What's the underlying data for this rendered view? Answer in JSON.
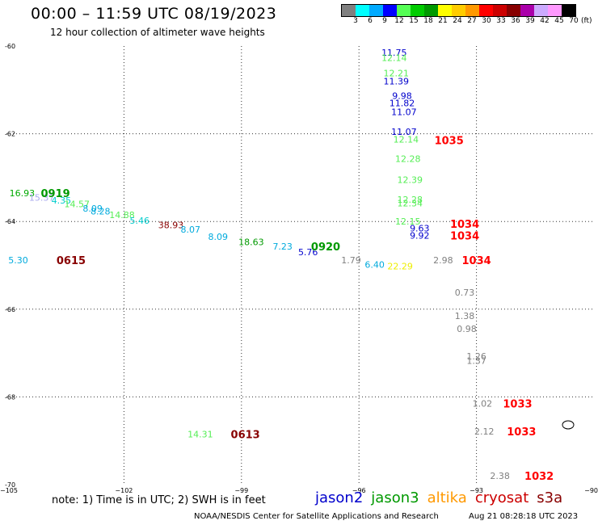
{
  "header": {
    "title": "00:00 – 11:59 UTC 08/19/2023",
    "subtitle": "12 hour collection of altimeter wave heights"
  },
  "legend": {
    "colors": [
      "#808080",
      "#00ffff",
      "#00aaff",
      "#0000ff",
      "#55ff55",
      "#00cc00",
      "#009900",
      "#ffff00",
      "#ffcc00",
      "#ff9900",
      "#ff0000",
      "#cc0000",
      "#880000",
      "#aa00aa",
      "#ccaaff",
      "#ff99ff",
      "#000000"
    ],
    "ticks": [
      "3",
      "6",
      "9",
      "12",
      "15",
      "18",
      "21",
      "24",
      "27",
      "30",
      "33",
      "36",
      "39",
      "42",
      "45",
      "70"
    ],
    "unit": "(ft)"
  },
  "footer": {
    "note": "note:  1) Time is in UTC;  2) SWH is in feet",
    "satellites": [
      {
        "name": "jason2",
        "color": "#0000cc"
      },
      {
        "name": "jason3",
        "color": "#009900"
      },
      {
        "name": "altika",
        "color": "#ff9900"
      },
      {
        "name": "cryosat",
        "color": "#cc0000"
      },
      {
        "name": "s3a",
        "color": "#880000"
      }
    ],
    "credit": "NOAA/NESDIS Center for Satellite Applications and Research",
    "timestamp": "Aug 21 08:28:18 UTC 2023"
  },
  "chart_data": {
    "type": "scatter",
    "xlim": [
      -105,
      -90
    ],
    "ylim": [
      -70,
      -60
    ],
    "x_ticks": [
      -105,
      -102,
      -99,
      -96,
      -93,
      -90
    ],
    "x_tick_labels": [
      "−105",
      "−102",
      "−99",
      "−96",
      "−93",
      "−90"
    ],
    "y_ticks": [
      -60,
      -62,
      -64,
      -66,
      -68,
      -70
    ],
    "y_tick_labels": [
      "-60",
      "-62",
      "-64",
      "-66",
      "-68",
      "-70"
    ],
    "grid": true,
    "wave_heights": [
      {
        "x": -104.6,
        "y": -63.35,
        "value": "16.93",
        "color": "#00aa00"
      },
      {
        "x": -104.1,
        "y": -63.45,
        "value": "15.37",
        "color": "#aaaaee"
      },
      {
        "x": -103.6,
        "y": -63.52,
        "value": "4.35",
        "color": "#00cccc"
      },
      {
        "x": -103.2,
        "y": -63.6,
        "value": "14.57",
        "color": "#55ee55"
      },
      {
        "x": -102.8,
        "y": -63.7,
        "value": "8.09",
        "color": "#00aadd"
      },
      {
        "x": -102.6,
        "y": -63.77,
        "value": "8.28",
        "color": "#00aadd"
      },
      {
        "x": -102.05,
        "y": -63.85,
        "value": "14.88",
        "color": "#55ee55"
      },
      {
        "x": -101.6,
        "y": -63.98,
        "value": "5.46",
        "color": "#00cccc"
      },
      {
        "x": -100.8,
        "y": -64.08,
        "value": "38.93",
        "color": "#880000"
      },
      {
        "x": -100.3,
        "y": -64.18,
        "value": "8.07",
        "color": "#00aadd"
      },
      {
        "x": -99.6,
        "y": -64.35,
        "value": "8.09",
        "color": "#00aadd"
      },
      {
        "x": -98.75,
        "y": -64.47,
        "value": "18.63",
        "color": "#009900"
      },
      {
        "x": -97.95,
        "y": -64.57,
        "value": "7.23",
        "color": "#00aadd"
      },
      {
        "x": -97.3,
        "y": -64.7,
        "value": "5.76",
        "color": "#0000cc"
      },
      {
        "x": -104.7,
        "y": -64.88,
        "value": "5.30",
        "color": "#00aadd"
      },
      {
        "x": -96.2,
        "y": -64.88,
        "value": "1.79",
        "color": "#808080"
      },
      {
        "x": -95.6,
        "y": -64.98,
        "value": "6.40",
        "color": "#00aadd"
      },
      {
        "x": -94.95,
        "y": -65.02,
        "value": "22.29",
        "color": "#eeee00"
      },
      {
        "x": -93.85,
        "y": -64.88,
        "value": "2.98",
        "color": "#808080"
      },
      {
        "x": -95.1,
        "y": -60.15,
        "value": "11.75",
        "color": "#0000cc"
      },
      {
        "x": -95.1,
        "y": -60.27,
        "value": "12.14",
        "color": "#55ee55"
      },
      {
        "x": -95.05,
        "y": -60.62,
        "value": "12.21",
        "color": "#55ee55"
      },
      {
        "x": -95.05,
        "y": -60.8,
        "value": "11.39",
        "color": "#0000cc"
      },
      {
        "x": -94.9,
        "y": -61.13,
        "value": "9.98",
        "color": "#0000cc"
      },
      {
        "x": -94.9,
        "y": -61.3,
        "value": "11.82",
        "color": "#0000cc"
      },
      {
        "x": -94.85,
        "y": -61.5,
        "value": "11.07",
        "color": "#0000cc"
      },
      {
        "x": -94.85,
        "y": -61.95,
        "value": "11.07",
        "color": "#0000cc"
      },
      {
        "x": -94.8,
        "y": -62.13,
        "value": "12.14",
        "color": "#55ee55"
      },
      {
        "x": -94.75,
        "y": -62.57,
        "value": "12.28",
        "color": "#55ee55"
      },
      {
        "x": -94.7,
        "y": -63.05,
        "value": "12.39",
        "color": "#55ee55"
      },
      {
        "x": -94.7,
        "y": -63.5,
        "value": "12.28",
        "color": "#55ee55"
      },
      {
        "x": -94.7,
        "y": -63.58,
        "value": "12.34",
        "color": "#55ee55"
      },
      {
        "x": -94.75,
        "y": -64.0,
        "value": "12.15",
        "color": "#55ee55"
      },
      {
        "x": -94.45,
        "y": -64.15,
        "value": "9.63",
        "color": "#0000cc"
      },
      {
        "x": -94.45,
        "y": -64.32,
        "value": "9.92",
        "color": "#0000cc"
      },
      {
        "x": -93.3,
        "y": -65.62,
        "value": "0.73",
        "color": "#808080"
      },
      {
        "x": -93.3,
        "y": -66.15,
        "value": "1.38",
        "color": "#808080"
      },
      {
        "x": -93.25,
        "y": -66.45,
        "value": "0.98",
        "color": "#808080"
      },
      {
        "x": -93.0,
        "y": -67.07,
        "value": "1.26",
        "color": "#808080"
      },
      {
        "x": -93.0,
        "y": -67.17,
        "value": "1.37",
        "color": "#808080"
      },
      {
        "x": -92.85,
        "y": -68.15,
        "value": "1.02",
        "color": "#808080"
      },
      {
        "x": -92.8,
        "y": -68.78,
        "value": "2.12",
        "color": "#808080"
      },
      {
        "x": -92.4,
        "y": -69.8,
        "value": "2.38",
        "color": "#808080"
      },
      {
        "x": -100.05,
        "y": -68.85,
        "value": "14.31",
        "color": "#55ee55"
      }
    ],
    "pass_times": [
      {
        "x": -103.75,
        "y": -63.35,
        "label": "0919",
        "color": "#009900"
      },
      {
        "x": -103.35,
        "y": -64.88,
        "label": "0615",
        "color": "#880000"
      },
      {
        "x": -96.85,
        "y": -64.57,
        "label": "0920",
        "color": "#009900"
      },
      {
        "x": -93.7,
        "y": -62.15,
        "label": "1035",
        "color": "#ff0000"
      },
      {
        "x": -93.3,
        "y": -64.05,
        "label": "1034",
        "color": "#ff0000"
      },
      {
        "x": -93.3,
        "y": -64.32,
        "label": "1034",
        "color": "#ff0000"
      },
      {
        "x": -93.0,
        "y": -64.88,
        "label": "1034",
        "color": "#ff0000"
      },
      {
        "x": -91.95,
        "y": -68.15,
        "label": "1033",
        "color": "#ff0000"
      },
      {
        "x": -91.85,
        "y": -68.78,
        "label": "1033",
        "color": "#ff0000"
      },
      {
        "x": -91.4,
        "y": -69.8,
        "label": "1032",
        "color": "#ff0000"
      },
      {
        "x": -98.9,
        "y": -68.85,
        "label": "0613",
        "color": "#880000"
      }
    ]
  }
}
